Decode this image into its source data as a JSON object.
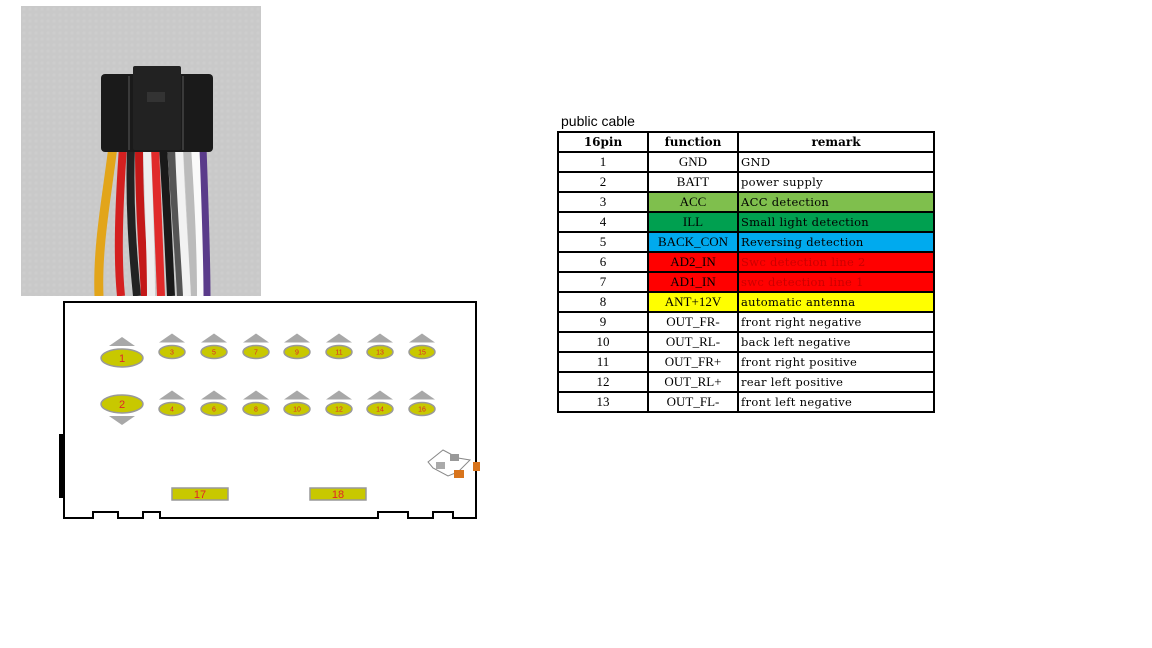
{
  "caption": "public cable",
  "table": {
    "headers": [
      "16pin",
      "function",
      "remark"
    ],
    "rows": [
      {
        "pin": "1",
        "function": "GND",
        "remark": "GND",
        "color": ""
      },
      {
        "pin": "2",
        "function": "BATT",
        "remark": "power supply",
        "color": ""
      },
      {
        "pin": "3",
        "function": "ACC",
        "remark": "ACC detection",
        "color": "#7fbf4d",
        "remark_text_color": "#000000"
      },
      {
        "pin": "4",
        "function": "ILL",
        "remark": "Small light detection",
        "color": "#00a050",
        "remark_text_color": "#000000"
      },
      {
        "pin": "5",
        "function": "BACK_CON",
        "remark": "Reversing detection",
        "color": "#00aaee",
        "remark_text_color": "#000000"
      },
      {
        "pin": "6",
        "function": "AD2_IN",
        "remark": "Swc detection line 2",
        "color": "#ff0000",
        "remark_text_color": "#cc0000"
      },
      {
        "pin": "7",
        "function": "AD1_IN",
        "remark": "swc detection line 1",
        "color": "#ff0000",
        "remark_text_color": "#cc0000"
      },
      {
        "pin": "8",
        "function": "ANT+12V",
        "remark": "automatic antenna",
        "color": "#ffff00",
        "remark_text_color": "#000000"
      },
      {
        "pin": "9",
        "function": "OUT_FR-",
        "remark": "front right negative",
        "color": ""
      },
      {
        "pin": "10",
        "function": "OUT_RL-",
        "remark": "back left negative",
        "color": ""
      },
      {
        "pin": "11",
        "function": "OUT_FR+",
        "remark": "front right positive",
        "color": ""
      },
      {
        "pin": "12",
        "function": "OUT_RL+",
        "remark": "rear left positive",
        "color": ""
      },
      {
        "pin": "13",
        "function": "OUT_FL-",
        "remark": "front left negative",
        "color": ""
      }
    ]
  },
  "connector": {
    "pin_fill": "#c8c800",
    "pin_label_color": "#e0242a",
    "top_row_pins": [
      "1",
      "3",
      "5",
      "7",
      "9",
      "11",
      "13",
      "15"
    ],
    "bottom_row_pins": [
      "2",
      "4",
      "6",
      "8",
      "10",
      "12",
      "14",
      "16"
    ],
    "rect_pins": [
      "17",
      "18"
    ]
  }
}
